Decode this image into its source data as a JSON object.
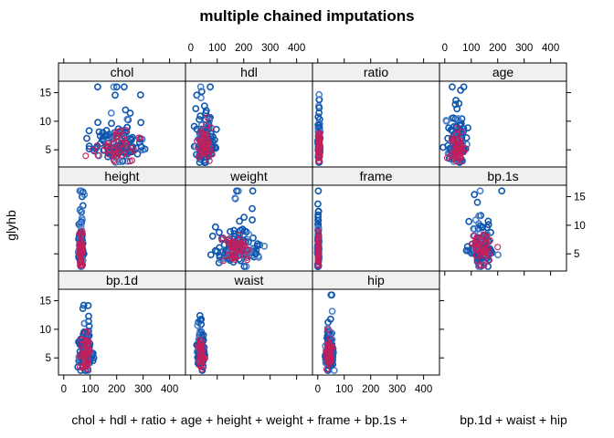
{
  "chart_data": {
    "type": "scatter",
    "title": "multiple chained imputations",
    "xlabel": "chol + hdl + ratio + age + height + weight + frame + bp.1s + bp.1d + waist + hip",
    "ylabel": "glyhb",
    "xlim": [
      -20,
      460
    ],
    "ylim": [
      2,
      17
    ],
    "x_ticks": [
      0,
      100,
      200,
      300,
      400
    ],
    "y_ticks": [
      5,
      10,
      15
    ],
    "grid": false,
    "layout": "4 columns x 3 rows (lattice xyplot)",
    "colors": {
      "observed": "#0e57b0",
      "observed_light": "#4f83c9",
      "imputed": "#c21f5c"
    },
    "series_colors": [
      "observed (blue)",
      "imputed (red)"
    ],
    "panels": [
      {
        "name": "chol",
        "x_center": 205,
        "x_spread": 45,
        "y_center": 5.6,
        "y_spread": 2.2,
        "y_max": 16
      },
      {
        "name": "hdl",
        "x_center": 52,
        "x_spread": 16,
        "y_center": 5.6,
        "y_spread": 2.2,
        "y_max": 16
      },
      {
        "name": "ratio",
        "x_center": 4.5,
        "x_spread": 2,
        "y_center": 5.6,
        "y_spread": 2.2,
        "y_max": 16
      },
      {
        "name": "age",
        "x_center": 47,
        "x_spread": 16,
        "y_center": 5.6,
        "y_spread": 2.2,
        "y_max": 16
      },
      {
        "name": "height",
        "x_center": 66,
        "x_spread": 4,
        "y_center": 5.6,
        "y_spread": 2.2,
        "y_max": 16
      },
      {
        "name": "weight",
        "x_center": 178,
        "x_spread": 40,
        "y_center": 5.6,
        "y_spread": 2.2,
        "y_max": 16
      },
      {
        "name": "frame",
        "x_center": 2,
        "x_spread": 1,
        "y_center": 5.6,
        "y_spread": 2.2,
        "y_max": 16
      },
      {
        "name": "bp.1s",
        "x_center": 137,
        "x_spread": 22,
        "y_center": 5.6,
        "y_spread": 2.2,
        "y_max": 16
      },
      {
        "name": "bp.1d",
        "x_center": 83,
        "x_spread": 13,
        "y_center": 5.6,
        "y_spread": 2.2,
        "y_max": 16
      },
      {
        "name": "waist",
        "x_center": 38,
        "x_spread": 6,
        "y_center": 5.6,
        "y_spread": 2.2,
        "y_max": 16
      },
      {
        "name": "hip",
        "x_center": 43,
        "x_spread": 6,
        "y_center": 5.6,
        "y_spread": 2.2,
        "y_max": 16
      }
    ]
  }
}
